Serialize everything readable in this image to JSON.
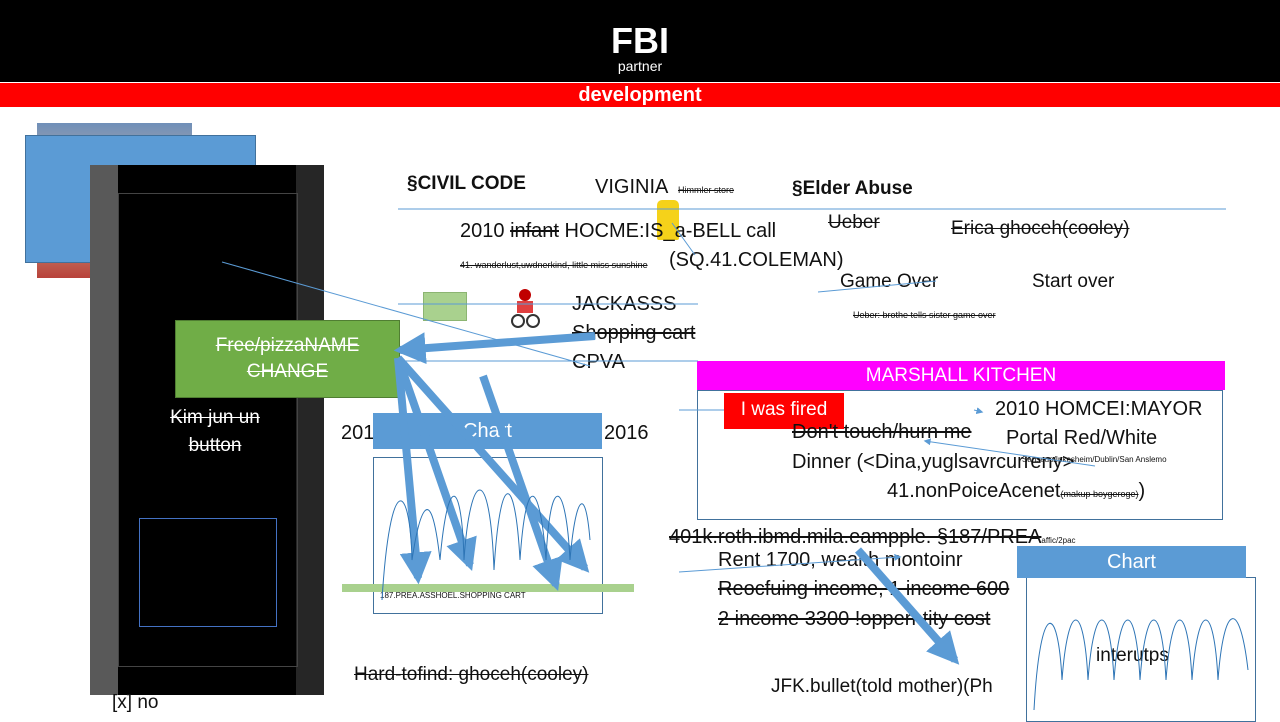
{
  "header": {
    "logo_title": "FBI",
    "logo_sub": "partner",
    "banner": "development"
  },
  "left_panel": {
    "green_box": "Free/pizzaNAME CHANGE",
    "kim_button": "Kim jun un button",
    "x_no": "[x] no"
  },
  "top_section": {
    "civil_code": "§CIVIL CODE",
    "viginia": "VIGINIA",
    "himmler": "Himmler store",
    "elder_abuse": "§Elder Abuse",
    "ueber": "Ueber",
    "erica": "Erica ghoceh(cooley)",
    "line2010_a": "2010 ",
    "line2010_b": "infant",
    "line2010_c": " HOCME:IS_a-BELL call",
    "wanderlust_small": "41. wanderlust,uwdnerkind, little miss sunshine",
    "sq41": "(SQ.41.COLEMAN)",
    "game_over": "Game Over",
    "start_over": "Start over",
    "ueber_brothe": "Ueber: brothe tells sister game over"
  },
  "middle": {
    "jackasss": "JACKASSS",
    "shopping_cart": "Shopping cart",
    "cpva": "CPVA",
    "year_from": "2010-",
    "year_to": "2016",
    "chart_label": "Chart",
    "shopping_small": "187.PREA.ASSHOEL.SHOPPING CART",
    "hard_to_find": "Hard-tofind: ghoceh(cooley)"
  },
  "marshall": {
    "title": "MARSHALL KITCHEN",
    "fired": "I was fired",
    "mayor": "2010 HOMCEI:MAYOR",
    "dont_touch": "Don't touch/hurn me",
    "portal": "Portal Red/White",
    "dinner": "Dinner (<Dina,yuglsavrcurreny>",
    "sanseuo": "Sanseuo/Ipkesheim/Dublin/San Anslemo",
    "nonpolice": "41.nonPoiceAcenet",
    "makup": "(makup boygeroge)",
    "close_paren": ")"
  },
  "bottom": {
    "k401": "401k.roth.ibmd.mila.eampple. §187/PREA",
    "affic": "affic/2pac",
    "rent": "Rent 1700, wealth montoinr",
    "reocfuing": "Reocfuing income, 1 income 600",
    "income2": "2 income 3300 !opperhtity cost",
    "jfk": "JFK.bullet(told mother)(Ph",
    "chart2_label": "Chart",
    "interutps": "interutps"
  }
}
